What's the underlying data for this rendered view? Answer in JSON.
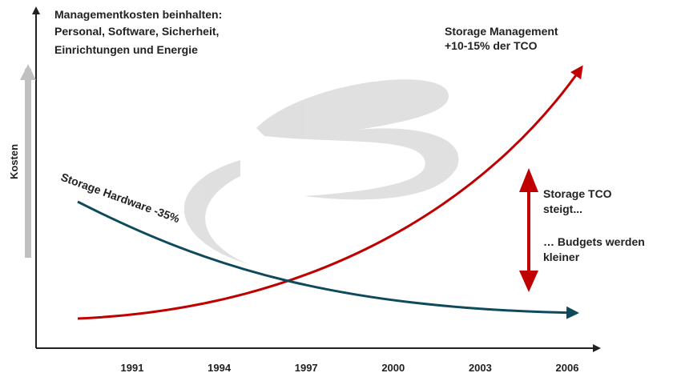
{
  "axis_label": "Kosten",
  "notes": {
    "management": [
      "Managementkosten beinhalten:",
      "Personal, Software, Sicherheit,",
      "Einrichtungen und Energie"
    ],
    "storage_management": [
      "Storage Management",
      "+10-15% der TCO"
    ],
    "hardware": "Storage Hardware -35%",
    "tco": [
      "Storage TCO",
      "steigt...",
      "… Budgets werden",
      "kleiner"
    ]
  },
  "years": [
    "1991",
    "1994",
    "1997",
    "2000",
    "2003",
    "2006"
  ]
}
